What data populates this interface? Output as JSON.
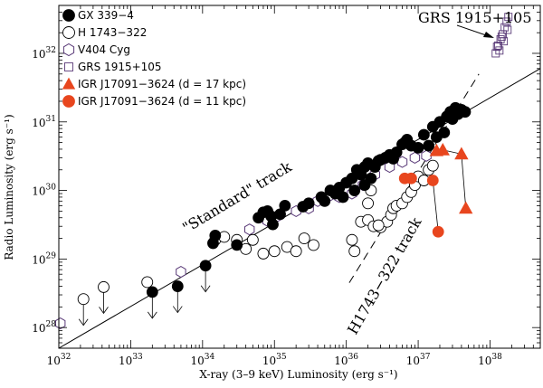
{
  "chart_data": {
    "type": "scatter",
    "xlabel": "X-ray (3–9 keV) Luminosity (erg s⁻¹)",
    "ylabel": "Radio Luminosity (erg s⁻¹)",
    "x_log": true,
    "y_log": true,
    "xlim": [
      1e+32,
      5e+38
    ],
    "ylim": [
      5e+27,
      5e+32
    ],
    "x_ticks": [
      {
        "value": 1e+32,
        "base": "10",
        "exp": "32"
      },
      {
        "value": 1e+33,
        "base": "10",
        "exp": "33"
      },
      {
        "value": 1e+34,
        "base": "10",
        "exp": "34"
      },
      {
        "value": 1e+35,
        "base": "10",
        "exp": "35"
      },
      {
        "value": 1e+36,
        "base": "10",
        "exp": "36"
      },
      {
        "value": 1e+37,
        "base": "10",
        "exp": "37"
      },
      {
        "value": 1e+38,
        "base": "10",
        "exp": "38"
      }
    ],
    "y_ticks": [
      {
        "value": 1e+28,
        "base": "10",
        "exp": "28"
      },
      {
        "value": 1e+29,
        "base": "10",
        "exp": "29"
      },
      {
        "value": 1e+30,
        "base": "10",
        "exp": "30"
      },
      {
        "value": 1e+31,
        "base": "10",
        "exp": "31"
      },
      {
        "value": 1e+32,
        "base": "10",
        "exp": "32"
      }
    ],
    "legend_position": "top-left",
    "series": [
      {
        "name": "GX 339−4",
        "marker": "filled-circle",
        "color": "#000000",
        "points": [
          [
            2e+33,
            3.3e+28
          ],
          [
            4.5e+33,
            4e+28
          ],
          [
            1.1e+34,
            8e+28
          ],
          [
            1.5e+34,
            2.2e+29
          ],
          [
            1.4e+34,
            1.7e+29
          ],
          [
            3e+34,
            1.6e+29
          ],
          [
            6e+34,
            4e+29
          ],
          [
            7e+34,
            4.8e+29
          ],
          [
            8e+34,
            5e+29
          ],
          [
            9e+34,
            4.2e+29
          ],
          [
            9.5e+34,
            3.2e+29
          ],
          [
            1.2e+35,
            4.5e+29
          ],
          [
            1.4e+35,
            6e+29
          ],
          [
            2.5e+35,
            5.8e+29
          ],
          [
            3e+35,
            6.5e+29
          ],
          [
            4.5e+35,
            8e+29
          ],
          [
            5e+35,
            7e+29
          ],
          [
            6e+35,
            1e+30
          ],
          [
            7e+35,
            9e+29
          ],
          [
            8e+35,
            1.1e+30
          ],
          [
            1e+36,
            1.3e+30
          ],
          [
            1.2e+36,
            1.5e+30
          ],
          [
            1.4e+36,
            2e+30
          ],
          [
            1.6e+36,
            1.7e+30
          ],
          [
            1.8e+36,
            2.2e+30
          ],
          [
            2e+36,
            2.5e+30
          ],
          [
            2.5e+36,
            2.2e+30
          ],
          [
            3e+36,
            2.8e+30
          ],
          [
            3.5e+36,
            3e+30
          ],
          [
            4e+36,
            3.3e+30
          ],
          [
            5e+36,
            3.6e+30
          ],
          [
            6e+36,
            4.7e+30
          ],
          [
            7e+36,
            5.5e+30
          ],
          [
            8e+36,
            4.5e+30
          ],
          [
            1e+37,
            4.2e+30
          ],
          [
            1.2e+37,
            6.5e+30
          ],
          [
            1.4e+37,
            4.5e+30
          ],
          [
            1.6e+37,
            8.5e+30
          ],
          [
            1.8e+37,
            6e+30
          ],
          [
            2e+37,
            1e+31
          ],
          [
            2.3e+37,
            7e+30
          ],
          [
            2.5e+37,
            1.2e+31
          ],
          [
            2.8e+37,
            1.4e+31
          ],
          [
            3e+37,
            1.1e+31
          ],
          [
            3.3e+37,
            1.6e+31
          ],
          [
            3.6e+37,
            1.3e+31
          ],
          [
            4e+37,
            1.5e+31
          ],
          [
            4.5e+37,
            1.4e+31
          ],
          [
            2.2e+36,
            1.5e+30
          ],
          [
            1.8e+36,
            1.2e+30
          ],
          [
            1.3e+36,
            1e+30
          ],
          [
            9e+35,
            8e+29
          ],
          [
            2.8e+36,
            2.7e+30
          ],
          [
            4.5e+36,
            2.9e+30
          ],
          [
            6.5e+36,
            5e+30
          ]
        ]
      },
      {
        "name": "H 1743−322",
        "marker": "open-circle",
        "color": "#000000",
        "points": [
          [
            2.2e+32,
            2.6e+28
          ],
          [
            4.2e+32,
            3.9e+28
          ],
          [
            1.7e+33,
            4.6e+28
          ],
          [
            1.5e+34,
            1.9e+29
          ],
          [
            2e+34,
            2.1e+29
          ],
          [
            3e+34,
            1.9e+29
          ],
          [
            4e+34,
            1.4e+29
          ],
          [
            5e+34,
            1.9e+29
          ],
          [
            7e+34,
            1.2e+29
          ],
          [
            1e+35,
            1.3e+29
          ],
          [
            1.5e+35,
            1.5e+29
          ],
          [
            2e+35,
            1.3e+29
          ],
          [
            2.6e+35,
            2e+29
          ],
          [
            3.5e+35,
            1.6e+29
          ],
          [
            1.2e+36,
            1.9e+29
          ],
          [
            1.3e+36,
            1.3e+29
          ],
          [
            1.6e+36,
            3.5e+29
          ],
          [
            2e+36,
            3.7e+29
          ],
          [
            2.4e+36,
            3e+29
          ],
          [
            3e+36,
            2.9e+29
          ],
          [
            3.7e+36,
            3.5e+29
          ],
          [
            4.2e+36,
            4.4e+29
          ],
          [
            4.5e+36,
            5.5e+29
          ],
          [
            5e+36,
            6e+29
          ],
          [
            6e+36,
            6.5e+29
          ],
          [
            7e+36,
            8e+29
          ],
          [
            8e+36,
            9.5e+29
          ],
          [
            9e+36,
            1.2e+30
          ],
          [
            1e+37,
            1.6e+30
          ],
          [
            1.2e+37,
            1.4e+30
          ],
          [
            1.4e+37,
            2e+30
          ],
          [
            1.6e+37,
            2.3e+30
          ],
          [
            2.2e+36,
            1e+30
          ],
          [
            2e+36,
            6.5e+29
          ],
          [
            2.8e+36,
            3.1e+29
          ]
        ]
      },
      {
        "name": "V404 Cyg",
        "marker": "open-hexagon",
        "color": "#5a3a78",
        "points": [
          [
            1.05e+32,
            1.15e+28
          ],
          [
            5e+33,
            6.5e+28
          ],
          [
            4.5e+34,
            2.7e+29
          ],
          [
            8e+34,
            3.6e+29
          ],
          [
            1.1e+35,
            4.2e+29
          ],
          [
            2e+35,
            5e+29
          ],
          [
            3e+35,
            5.5e+29
          ],
          [
            4e+35,
            7e+29
          ],
          [
            6e+35,
            8.5e+29
          ],
          [
            8e+35,
            8e+29
          ],
          [
            1.2e+36,
            9e+29
          ],
          [
            1.7e+36,
            1.2e+30
          ],
          [
            2.5e+36,
            1.7e+30
          ],
          [
            4e+36,
            2.2e+30
          ],
          [
            6e+36,
            2.6e+30
          ],
          [
            9e+36,
            3e+30
          ],
          [
            1.3e+37,
            3.2e+30
          ]
        ]
      },
      {
        "name": "GRS 1915+105",
        "marker": "open-square",
        "color": "#5a3a78",
        "points": [
          [
            1.2e+38,
            1e+32
          ],
          [
            1.3e+38,
            1.3e+32
          ],
          [
            1.4e+38,
            1.6e+32
          ],
          [
            1.5e+38,
            1.9e+32
          ],
          [
            1.6e+38,
            2.4e+32
          ],
          [
            1.7e+38,
            2.9e+32
          ],
          [
            1.8e+38,
            3.4e+32
          ],
          [
            1.35e+38,
            1.1e+32
          ],
          [
            1.55e+38,
            1.5e+32
          ],
          [
            1.75e+38,
            2.2e+32
          ],
          [
            1.25e+38,
            1.25e+32
          ],
          [
            1.45e+38,
            1.75e+32
          ]
        ]
      },
      {
        "name": "IGR J17091−3624 (d = 17 kpc)",
        "marker": "filled-triangle",
        "color": "#e8461e",
        "points": [
          [
            1.8e+37,
            3.8e+30
          ],
          [
            2.2e+37,
            3.9e+30
          ],
          [
            4e+37,
            3.4e+30
          ],
          [
            4.6e+37,
            5.5e+29
          ]
        ]
      },
      {
        "name": "IGR J17091−3624 (d = 11 kpc)",
        "marker": "filled-circle",
        "color": "#e8461e",
        "points": [
          [
            6.5e+36,
            1.5e+30
          ],
          [
            8e+36,
            1.5e+30
          ],
          [
            1.6e+37,
            1.4e+30
          ],
          [
            1.9e+37,
            2.5e+29
          ]
        ]
      }
    ],
    "upper_limits": [
      [
        2.2e+32,
        2.6e+28
      ],
      [
        4.2e+32,
        3.9e+28
      ],
      [
        2e+33,
        3.3e+28
      ],
      [
        4.5e+33,
        4e+28
      ],
      [
        1.1e+34,
        8e+28
      ]
    ],
    "lines": [
      {
        "style": "solid",
        "from": [
          1e+32,
          5e+27
        ],
        "to": [
          5e+38,
          6e+31
        ]
      },
      {
        "style": "dashed",
        "from": [
          1.1e+36,
          4.5e+28
        ],
        "to": [
          7e+37,
          5e+31
        ]
      }
    ],
    "red_paths": [
      [
        [
          1.8e+37,
          3.8e+30
        ],
        [
          2.2e+37,
          3.9e+30
        ],
        [
          4e+37,
          3.4e+30
        ],
        [
          4.6e+37,
          5.5e+29
        ]
      ],
      [
        [
          6.5e+36,
          1.5e+30
        ],
        [
          8e+36,
          1.5e+30
        ],
        [
          1.6e+37,
          1.4e+30
        ],
        [
          1.9e+37,
          2.5e+29
        ]
      ]
    ],
    "annotations": {
      "grs_label": "GRS 1915+105",
      "standard_track": "\"Standard\" track",
      "h1743_track": "H1743−322 track"
    }
  }
}
